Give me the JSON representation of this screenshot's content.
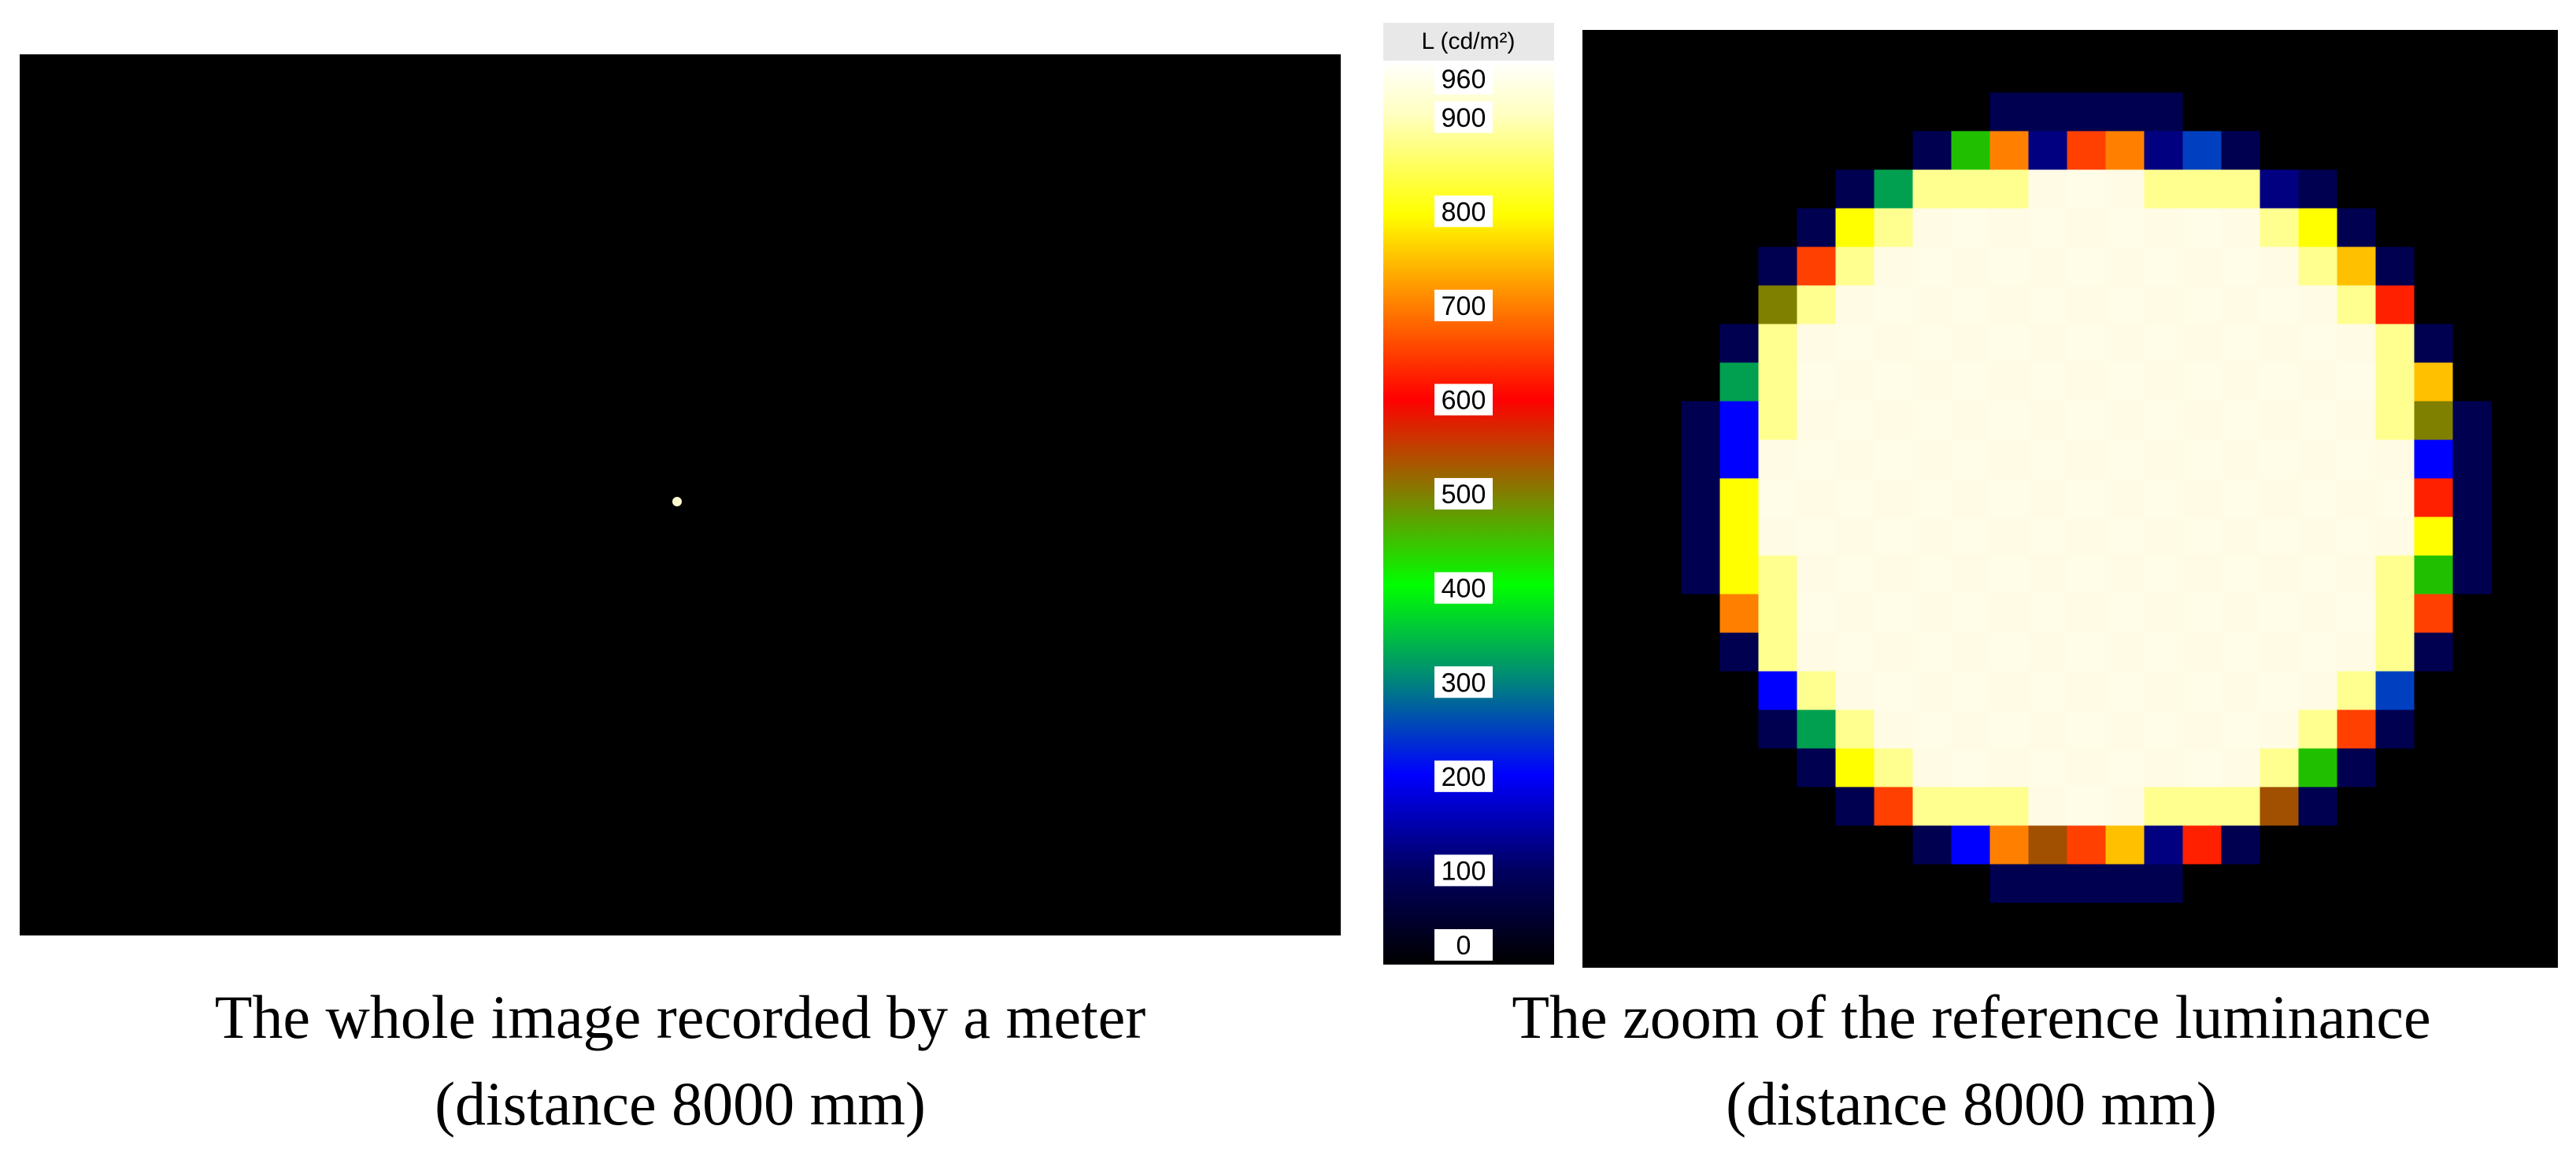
{
  "left_panel": {
    "caption_line1": "The whole image recorded by a meter",
    "caption_line2": "(distance 8000 mm)"
  },
  "colorbar": {
    "label": "L (cd/m²)",
    "range": [
      0,
      960
    ],
    "ticks": [
      960,
      900,
      800,
      700,
      600,
      500,
      400,
      300,
      200,
      100,
      0
    ]
  },
  "right_panel": {
    "caption_line1": "The zoom of the reference luminance",
    "caption_line2": "(distance 8000 mm)"
  }
}
